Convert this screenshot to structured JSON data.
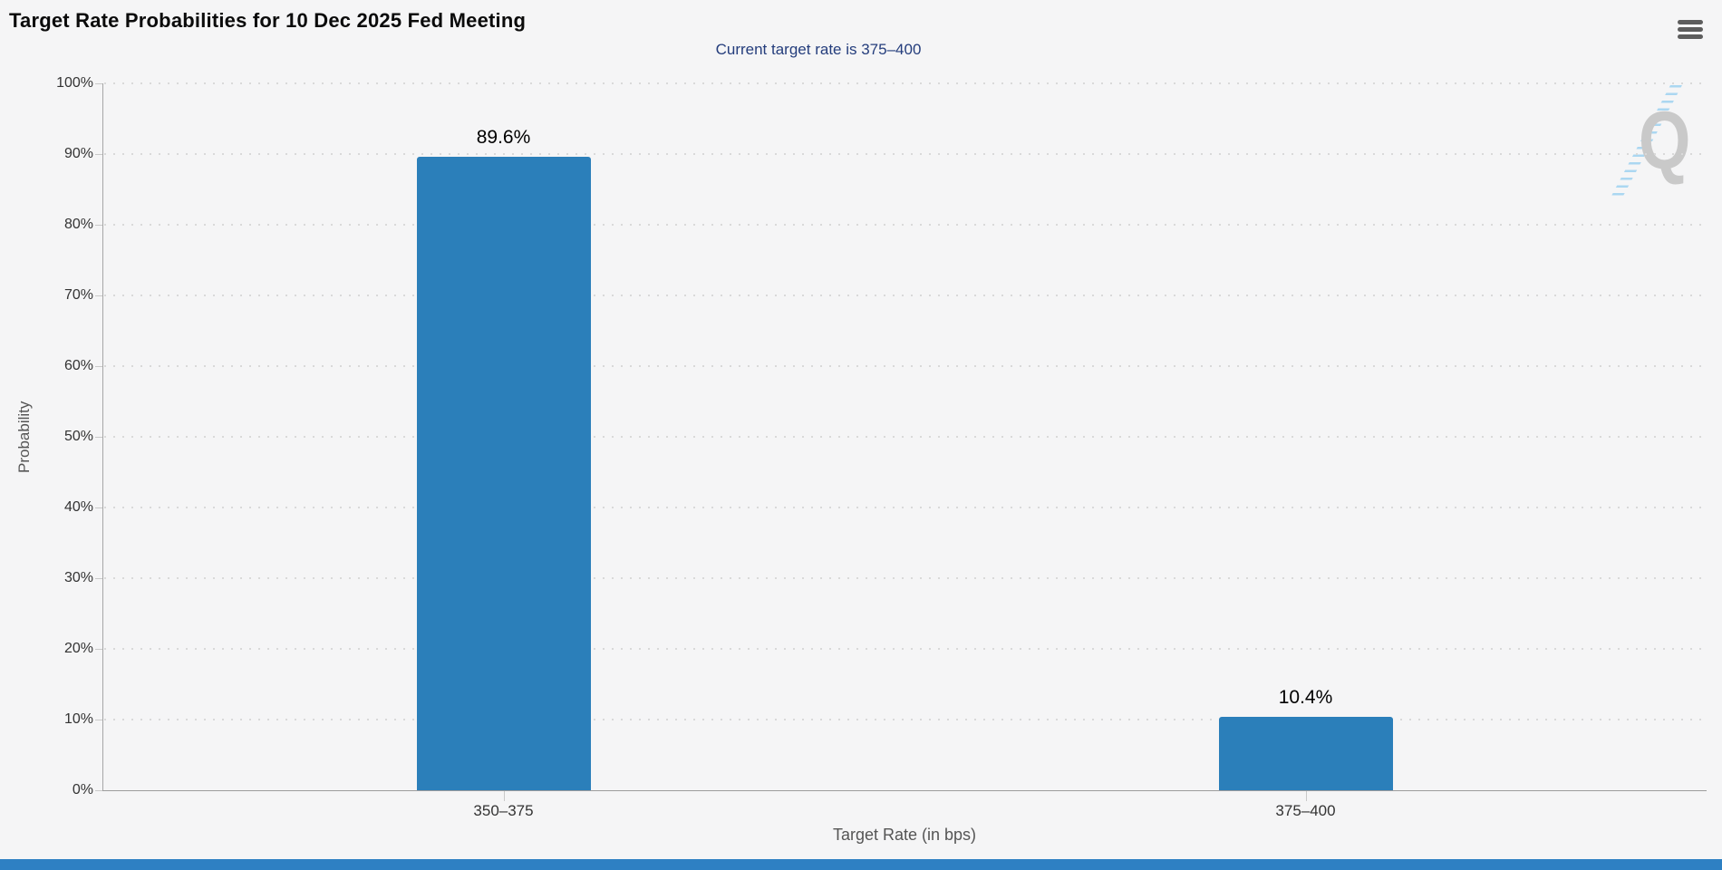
{
  "chart_data": {
    "type": "bar",
    "title": "Target Rate Probabilities for 10 Dec 2025 Fed Meeting",
    "subtitle": "Current target rate is 375–400",
    "categories": [
      "350–375",
      "375–400"
    ],
    "values": [
      89.6,
      10.4
    ],
    "value_labels": [
      "89.6%",
      "10.4%"
    ],
    "xlabel": "Target Rate (in bps)",
    "ylabel": "Probability",
    "ylim": [
      0,
      100
    ],
    "ytick_step": 10,
    "ytick_labels": [
      "0%",
      "10%",
      "20%",
      "30%",
      "40%",
      "50%",
      "60%",
      "70%",
      "80%",
      "90%",
      "100%"
    ],
    "grid": "dotted horizontal",
    "legend": "none"
  },
  "watermark": {
    "letter": "Q"
  },
  "menu": {
    "icon": "hamburger-menu-icon"
  },
  "colors": {
    "background": "#f5f5f6",
    "bar": "#2b7fba",
    "subtitle_text": "#243d7c",
    "watermark_letter": "#c9c9c9",
    "watermark_slash": "#abd7f1",
    "footer_bar": "#2e80c3"
  }
}
